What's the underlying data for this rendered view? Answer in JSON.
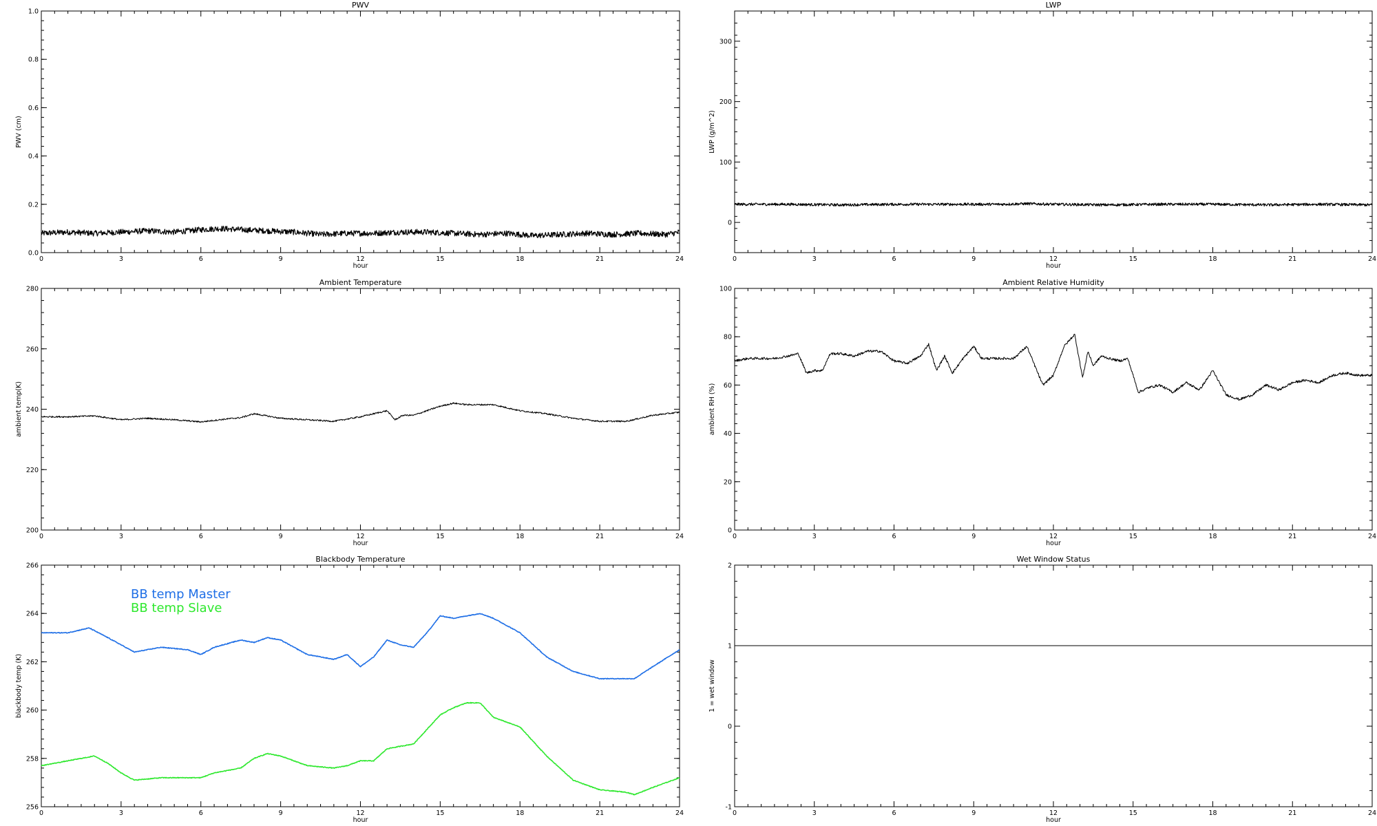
{
  "chart_data": [
    {
      "id": "pwv",
      "type": "line",
      "title": "PWV",
      "xlabel": "hour",
      "ylabel": "PWV (cm)",
      "xlim": [
        0,
        24
      ],
      "ylim": [
        0,
        1
      ],
      "xticks": [
        "0",
        "3",
        "6",
        "9",
        "12",
        "15",
        "18",
        "21",
        "24"
      ],
      "yticks": [
        "0.0",
        "0.2",
        "0.4",
        "0.6",
        "0.8",
        "1.0"
      ],
      "series": [
        {
          "color": "#000000",
          "noise": 0.012,
          "lw": 1.2,
          "x": [
            0,
            1,
            2,
            3,
            4,
            5,
            6,
            6.7,
            7.5,
            8.5,
            9.5,
            10.5,
            11.5,
            12.5,
            13.5,
            14.5,
            15.5,
            16.5,
            17.5,
            18.5,
            19.5,
            20.5,
            21.5,
            22.5,
            23.5,
            24
          ],
          "y": [
            0.08,
            0.085,
            0.08,
            0.085,
            0.09,
            0.085,
            0.095,
            0.1,
            0.095,
            0.09,
            0.085,
            0.075,
            0.08,
            0.08,
            0.085,
            0.085,
            0.08,
            0.075,
            0.08,
            0.07,
            0.075,
            0.08,
            0.075,
            0.08,
            0.075,
            0.085
          ]
        }
      ]
    },
    {
      "id": "lwp",
      "type": "line",
      "title": "LWP",
      "xlabel": "hour",
      "ylabel": "LWP (g/m^2)",
      "xlim": [
        0,
        24
      ],
      "ylim": [
        -50,
        350
      ],
      "xticks": [
        "0",
        "3",
        "6",
        "9",
        "12",
        "15",
        "18",
        "21",
        "24"
      ],
      "yticks": [
        "0",
        "100",
        "200",
        "300"
      ],
      "series": [
        {
          "color": "#000000",
          "noise": 2.2,
          "lw": 1.2,
          "x": [
            0,
            2,
            4,
            6,
            8,
            10,
            11,
            12,
            14,
            16,
            18,
            20,
            22,
            24
          ],
          "y": [
            30,
            30,
            29,
            30,
            30,
            30,
            31,
            30,
            29,
            30,
            30,
            29,
            30,
            29
          ]
        }
      ]
    },
    {
      "id": "ambient-temp",
      "type": "line",
      "title": "Ambient Temperature",
      "xlabel": "hour",
      "ylabel": "ambient temp(K)",
      "xlim": [
        0,
        24
      ],
      "ylim": [
        200,
        280
      ],
      "xticks": [
        "0",
        "3",
        "6",
        "9",
        "12",
        "15",
        "18",
        "21",
        "24"
      ],
      "yticks": [
        "200",
        "220",
        "240",
        "260",
        "280"
      ],
      "series": [
        {
          "color": "#000000",
          "noise": 0.25,
          "lw": 1,
          "x": [
            0,
            1,
            2,
            3,
            4,
            5,
            6,
            7,
            7.5,
            8,
            9,
            10,
            11,
            12,
            12.5,
            13,
            13.3,
            13.6,
            14,
            15,
            15.5,
            16,
            17,
            18,
            19,
            20,
            21,
            22,
            23,
            24
          ],
          "y": [
            237.5,
            237.5,
            237.8,
            236.5,
            237,
            236.5,
            235.8,
            236.8,
            237.2,
            238.5,
            237,
            236.5,
            236,
            237.5,
            238.5,
            239.5,
            236.5,
            238,
            238,
            241,
            242,
            241.5,
            241.5,
            239.5,
            238.5,
            237,
            236,
            236,
            238,
            239
          ]
        }
      ]
    },
    {
      "id": "ambient-rh",
      "type": "line",
      "title": "Ambient Relative Humidity",
      "xlabel": "hour",
      "ylabel": "ambient RH (%)",
      "xlim": [
        0,
        24
      ],
      "ylim": [
        0,
        100
      ],
      "xticks": [
        "0",
        "3",
        "6",
        "9",
        "12",
        "15",
        "18",
        "21",
        "24"
      ],
      "yticks": [
        "0",
        "20",
        "40",
        "60",
        "80",
        "100"
      ],
      "series": [
        {
          "color": "#000000",
          "noise": 0.5,
          "lw": 1,
          "x": [
            0,
            0.5,
            1,
            1.5,
            2,
            2.4,
            2.7,
            3,
            3.3,
            3.6,
            4,
            4.5,
            5,
            5.5,
            6,
            6.5,
            7,
            7.3,
            7.6,
            7.9,
            8.2,
            8.6,
            9,
            9.3,
            9.6,
            10,
            10.5,
            11,
            11.3,
            11.6,
            12,
            12.4,
            12.8,
            13.1,
            13.3,
            13.5,
            13.8,
            14.1,
            14.5,
            14.8,
            15.2,
            15.6,
            16,
            16.5,
            17,
            17.5,
            18,
            18.5,
            19,
            19.5,
            20,
            20.5,
            21,
            21.5,
            22,
            22.5,
            23,
            23.5,
            24
          ],
          "y": [
            70,
            71,
            71,
            71,
            72,
            73,
            65,
            66,
            66,
            73,
            73,
            72,
            74,
            74,
            70,
            69,
            72,
            77,
            66,
            72,
            65,
            71,
            76,
            71,
            71,
            71,
            71,
            76,
            68,
            60,
            64,
            76,
            81,
            63,
            74,
            68,
            72,
            71,
            70,
            71,
            57,
            59,
            60,
            57,
            61,
            58,
            66,
            56,
            54,
            56,
            60,
            58,
            61,
            62,
            61,
            64,
            65,
            64,
            64
          ]
        }
      ]
    },
    {
      "id": "blackbody-temp",
      "type": "line",
      "title": "Blackbody Temperature",
      "xlabel": "hour",
      "ylabel": "blackbody temp (K)",
      "xlim": [
        0,
        24
      ],
      "ylim": [
        256,
        266
      ],
      "xticks": [
        "0",
        "3",
        "6",
        "9",
        "12",
        "15",
        "18",
        "21",
        "24"
      ],
      "yticks": [
        "256",
        "258",
        "260",
        "262",
        "264",
        "266"
      ],
      "legend_position": "top-left",
      "series": [
        {
          "name": "BB temp Master",
          "color": "#1f6fe6",
          "noise": 0.015,
          "lw": 1.6,
          "x": [
            0,
            1,
            1.8,
            2.5,
            3.5,
            4.5,
            5.5,
            6,
            6.5,
            7.5,
            8,
            8.5,
            9,
            10,
            11,
            11.5,
            12,
            12.5,
            13,
            13.5,
            14,
            14.5,
            15,
            15.5,
            16,
            16.5,
            17,
            18,
            19,
            20,
            21,
            22,
            22.3,
            23,
            24
          ],
          "y": [
            263.2,
            263.2,
            263.4,
            263,
            262.4,
            262.6,
            262.5,
            262.3,
            262.6,
            262.9,
            262.8,
            263,
            262.9,
            262.3,
            262.1,
            262.3,
            261.8,
            262.2,
            262.9,
            262.7,
            262.6,
            263.2,
            263.9,
            263.8,
            263.9,
            264,
            263.8,
            263.2,
            262.2,
            261.6,
            261.3,
            261.3,
            261.3,
            261.8,
            262.5
          ]
        },
        {
          "name": "BB temp Slave",
          "color": "#2ee82e",
          "noise": 0.015,
          "lw": 1.6,
          "x": [
            0,
            1,
            1.5,
            2,
            2.5,
            3,
            3.5,
            4.5,
            5.5,
            6,
            6.5,
            7.5,
            8,
            8.5,
            9,
            10,
            11,
            11.5,
            12,
            12.5,
            13,
            13.5,
            14,
            14.5,
            15,
            15.5,
            16,
            16.5,
            17,
            18,
            19,
            20,
            21,
            22,
            22.3,
            23,
            24
          ],
          "y": [
            257.7,
            257.9,
            258,
            258.1,
            257.8,
            257.4,
            257.1,
            257.2,
            257.2,
            257.2,
            257.4,
            257.6,
            258,
            258.2,
            258.1,
            257.7,
            257.6,
            257.7,
            257.9,
            257.9,
            258.4,
            258.5,
            258.6,
            259.2,
            259.8,
            260.1,
            260.3,
            260.3,
            259.7,
            259.3,
            258.1,
            257.1,
            256.7,
            256.6,
            256.5,
            256.8,
            257.2
          ]
        }
      ]
    },
    {
      "id": "wet-window",
      "type": "line",
      "title": "Wet Window Status",
      "xlabel": "hour",
      "ylabel": "1 = wet window",
      "xlim": [
        0,
        24
      ],
      "ylim": [
        -1,
        2
      ],
      "xticks": [
        "0",
        "3",
        "6",
        "9",
        "12",
        "15",
        "18",
        "21",
        "24"
      ],
      "yticks": [
        "-1",
        "0",
        "1",
        "2"
      ],
      "series": [
        {
          "color": "#000000",
          "noise": 0,
          "lw": 1,
          "x": [
            0,
            24
          ],
          "y": [
            1,
            1
          ]
        }
      ]
    }
  ]
}
